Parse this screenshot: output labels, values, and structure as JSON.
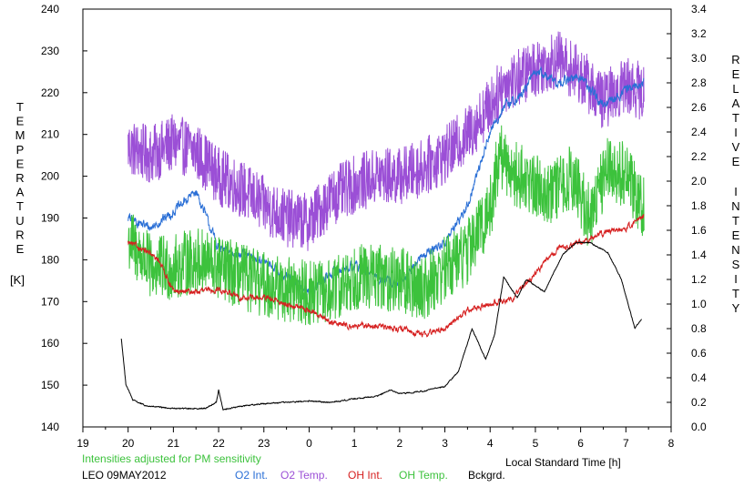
{
  "chart_data": {
    "type": "line",
    "left_axis": {
      "label_letters": [
        "T",
        "E",
        "M",
        "P",
        "E",
        "R",
        "A",
        "T",
        "U",
        "R",
        "E"
      ],
      "unit": "[K]",
      "ylim": [
        140,
        240
      ],
      "ticks": [
        "140",
        "150",
        "160",
        "170",
        "180",
        "190",
        "200",
        "210",
        "220",
        "230",
        "240"
      ]
    },
    "right_axis": {
      "label_letters_1": [
        "R",
        "E",
        "L",
        "A",
        "T",
        "I",
        "V",
        "E"
      ],
      "label_letters_2": [
        "I",
        "N",
        "T",
        "E",
        "N",
        "S",
        "I",
        "T",
        "Y"
      ],
      "ylim": [
        0.0,
        3.4
      ],
      "ticks": [
        "0.0",
        "0.2",
        "0.4",
        "0.6",
        "0.8",
        "1.0",
        "1.2",
        "1.4",
        "1.6",
        "1.8",
        "2.0",
        "2.2",
        "2.4",
        "2.6",
        "2.8",
        "3.0",
        "3.2",
        "3.4"
      ]
    },
    "x_axis": {
      "label": "Local Standard Time [h]",
      "xlim": [
        19,
        32
      ],
      "ticks": [
        "19",
        "20",
        "21",
        "22",
        "23",
        "0",
        "1",
        "2",
        "3",
        "4",
        "5",
        "6",
        "7",
        "8"
      ]
    },
    "note": "Intensities adjusted for PM sensitivity",
    "station": "LEO 09MAY2012",
    "legend": [
      {
        "name": "O2 Int.",
        "color": "#2a6fd6"
      },
      {
        "name": "O2 Temp.",
        "color": "#9b4fd6"
      },
      {
        "name": "OH Int.",
        "color": "#d62020"
      },
      {
        "name": "OH Temp.",
        "color": "#3cc23c"
      },
      {
        "name": "Bckgrd.",
        "color": "#000000"
      }
    ],
    "series": [
      {
        "name": "O2 Temp.",
        "axis": "left",
        "color": "#9b4fd6",
        "noise": 7,
        "x": [
          20.0,
          20.5,
          21.0,
          21.5,
          22.0,
          22.5,
          23.0,
          23.5,
          24.0,
          24.5,
          25.0,
          25.5,
          26.0,
          26.5,
          27.0,
          27.5,
          28.0,
          28.3,
          28.7,
          29.0,
          29.5,
          30.0,
          30.5,
          31.0,
          31.4
        ],
        "y": [
          207,
          205,
          208,
          206,
          200,
          197,
          193,
          190,
          189,
          195,
          198,
          200,
          200,
          202,
          205,
          210,
          217,
          222,
          224,
          226,
          228,
          224,
          218,
          222,
          220
        ]
      },
      {
        "name": "O2 Int.",
        "axis": "right",
        "color": "#2a6fd6",
        "noise": 0.05,
        "x": [
          20.0,
          20.5,
          21.0,
          21.3,
          21.5,
          22.0,
          22.5,
          23.0,
          23.5,
          24.0,
          24.5,
          25.0,
          25.5,
          26.0,
          26.5,
          27.0,
          27.5,
          28.0,
          28.3,
          28.7,
          29.0,
          29.5,
          30.0,
          30.5,
          31.0,
          31.4
        ],
        "y": [
          1.7,
          1.62,
          1.75,
          1.85,
          1.92,
          1.45,
          1.4,
          1.35,
          1.22,
          1.1,
          1.25,
          1.32,
          1.22,
          1.15,
          1.4,
          1.5,
          1.8,
          2.4,
          2.6,
          2.7,
          2.9,
          2.8,
          2.85,
          2.6,
          2.75,
          2.8
        ]
      },
      {
        "name": "OH Temp.",
        "axis": "left",
        "color": "#3cc23c",
        "noise": 8,
        "x": [
          20.0,
          20.5,
          21.0,
          21.5,
          22.0,
          22.5,
          23.0,
          23.5,
          24.0,
          24.5,
          25.0,
          25.5,
          26.0,
          26.5,
          27.0,
          27.5,
          28.0,
          28.2,
          28.6,
          29.0,
          29.4,
          29.8,
          30.2,
          30.6,
          31.0,
          31.4
        ],
        "y": [
          185,
          178,
          178,
          180,
          178,
          176,
          174,
          173,
          172,
          172,
          176,
          176,
          175,
          173,
          178,
          182,
          192,
          205,
          200,
          198,
          196,
          200,
          190,
          203,
          200,
          193
        ]
      },
      {
        "name": "OH Int.",
        "axis": "right",
        "color": "#d62020",
        "noise": 0.03,
        "x": [
          20.0,
          20.3,
          20.7,
          21.0,
          21.5,
          22.0,
          22.5,
          23.0,
          23.5,
          24.0,
          24.5,
          25.0,
          25.5,
          26.0,
          26.5,
          27.0,
          27.5,
          28.0,
          28.5,
          29.0,
          29.5,
          30.0,
          30.5,
          31.0,
          31.4
        ],
        "y": [
          1.5,
          1.45,
          1.35,
          1.1,
          1.1,
          1.12,
          1.05,
          1.05,
          1.0,
          0.95,
          0.85,
          0.82,
          0.82,
          0.8,
          0.75,
          0.8,
          0.95,
          1.0,
          1.05,
          1.25,
          1.45,
          1.5,
          1.58,
          1.62,
          1.72
        ]
      },
      {
        "name": "Bckgrd.",
        "axis": "right",
        "color": "#000000",
        "noise": 0.006,
        "x": [
          19.85,
          19.95,
          20.1,
          20.4,
          21.0,
          21.7,
          21.95,
          22.0,
          22.1,
          22.5,
          23.0,
          23.5,
          24.0,
          24.5,
          25.0,
          25.5,
          25.8,
          26.0,
          26.5,
          27.0,
          27.3,
          27.6,
          27.9,
          28.1,
          28.3,
          28.6,
          28.8,
          29.2,
          29.6,
          29.9,
          30.2,
          30.6,
          30.9,
          31.2,
          31.35
        ],
        "y": [
          0.72,
          0.35,
          0.22,
          0.17,
          0.15,
          0.15,
          0.2,
          0.3,
          0.14,
          0.17,
          0.19,
          0.2,
          0.21,
          0.2,
          0.23,
          0.25,
          0.3,
          0.27,
          0.29,
          0.33,
          0.45,
          0.8,
          0.55,
          0.75,
          1.22,
          1.05,
          1.2,
          1.1,
          1.4,
          1.5,
          1.5,
          1.42,
          1.2,
          0.8,
          0.88
        ]
      }
    ]
  }
}
